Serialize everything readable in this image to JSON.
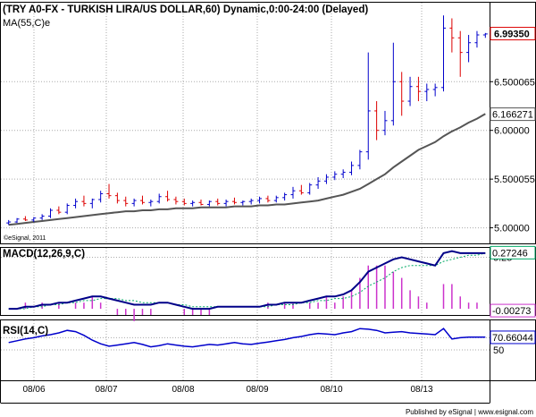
{
  "title": "(TRY A0-FX - TURKISH LIRA/US DOLLAR,60) Dynamic,0:00-24:00 (Delayed)",
  "footer": "Published by eSignal | www.esignal.com",
  "chart_data": [
    {
      "type": "candlestick",
      "title": "(TRY A0-FX - TURKISH LIRA/US DOLLAR,60) Dynamic,0:00-24:00 (Delayed)",
      "overlay_label": "MA(55,C)e",
      "copyright": "©eSignal, 2011",
      "y_ticks": [
        "6.500065",
        "6.00000",
        "5.500055",
        "5.00000"
      ],
      "y_tick_values": [
        6.5,
        6.0,
        5.5,
        5.0
      ],
      "ylim": [
        4.84,
        7.32
      ],
      "last_price": "6.99350",
      "ma_value": "6.166271",
      "x_ticks": [
        "08/06",
        "08/07",
        "08/08",
        "08/09",
        "08/10",
        "08/13"
      ],
      "x_tick_positions": [
        38,
        119,
        205,
        288,
        371,
        472
      ],
      "candles": [
        {
          "o": 5.05,
          "h": 5.08,
          "l": 5.03,
          "c": 5.06
        },
        {
          "o": 5.06,
          "h": 5.1,
          "l": 5.05,
          "c": 5.09
        },
        {
          "o": 5.09,
          "h": 5.12,
          "l": 5.07,
          "c": 5.08
        },
        {
          "o": 5.08,
          "h": 5.11,
          "l": 5.06,
          "c": 5.1
        },
        {
          "o": 5.1,
          "h": 5.14,
          "l": 5.08,
          "c": 5.12
        },
        {
          "o": 5.12,
          "h": 5.2,
          "l": 5.1,
          "c": 5.18
        },
        {
          "o": 5.18,
          "h": 5.22,
          "l": 5.14,
          "c": 5.16
        },
        {
          "o": 5.16,
          "h": 5.25,
          "l": 5.14,
          "c": 5.23
        },
        {
          "o": 5.23,
          "h": 5.3,
          "l": 5.2,
          "c": 5.27
        },
        {
          "o": 5.27,
          "h": 5.33,
          "l": 5.22,
          "c": 5.25
        },
        {
          "o": 5.25,
          "h": 5.3,
          "l": 5.2,
          "c": 5.29
        },
        {
          "o": 5.29,
          "h": 5.38,
          "l": 5.26,
          "c": 5.35
        },
        {
          "o": 5.35,
          "h": 5.45,
          "l": 5.3,
          "c": 5.33
        },
        {
          "o": 5.33,
          "h": 5.36,
          "l": 5.25,
          "c": 5.28
        },
        {
          "o": 5.28,
          "h": 5.32,
          "l": 5.22,
          "c": 5.25
        },
        {
          "o": 5.25,
          "h": 5.3,
          "l": 5.22,
          "c": 5.28
        },
        {
          "o": 5.28,
          "h": 5.33,
          "l": 5.24,
          "c": 5.26
        },
        {
          "o": 5.26,
          "h": 5.29,
          "l": 5.22,
          "c": 5.27
        },
        {
          "o": 5.27,
          "h": 5.35,
          "l": 5.25,
          "c": 5.32
        },
        {
          "o": 5.32,
          "h": 5.38,
          "l": 5.27,
          "c": 5.29
        },
        {
          "o": 5.29,
          "h": 5.32,
          "l": 5.24,
          "c": 5.27
        },
        {
          "o": 5.27,
          "h": 5.3,
          "l": 5.23,
          "c": 5.25
        },
        {
          "o": 5.25,
          "h": 5.28,
          "l": 5.22,
          "c": 5.26
        },
        {
          "o": 5.26,
          "h": 5.29,
          "l": 5.23,
          "c": 5.24
        },
        {
          "o": 5.24,
          "h": 5.28,
          "l": 5.22,
          "c": 5.27
        },
        {
          "o": 5.27,
          "h": 5.3,
          "l": 5.23,
          "c": 5.25
        },
        {
          "o": 5.25,
          "h": 5.29,
          "l": 5.22,
          "c": 5.27
        },
        {
          "o": 5.27,
          "h": 5.31,
          "l": 5.24,
          "c": 5.26
        },
        {
          "o": 5.26,
          "h": 5.28,
          "l": 5.23,
          "c": 5.27
        },
        {
          "o": 5.27,
          "h": 5.3,
          "l": 5.24,
          "c": 5.28
        },
        {
          "o": 5.28,
          "h": 5.32,
          "l": 5.25,
          "c": 5.3
        },
        {
          "o": 5.3,
          "h": 5.33,
          "l": 5.26,
          "c": 5.28
        },
        {
          "o": 5.28,
          "h": 5.33,
          "l": 5.26,
          "c": 5.31
        },
        {
          "o": 5.31,
          "h": 5.36,
          "l": 5.28,
          "c": 5.34
        },
        {
          "o": 5.34,
          "h": 5.42,
          "l": 5.3,
          "c": 5.38
        },
        {
          "o": 5.38,
          "h": 5.44,
          "l": 5.34,
          "c": 5.36
        },
        {
          "o": 5.36,
          "h": 5.46,
          "l": 5.34,
          "c": 5.44
        },
        {
          "o": 5.44,
          "h": 5.52,
          "l": 5.4,
          "c": 5.48
        },
        {
          "o": 5.48,
          "h": 5.55,
          "l": 5.45,
          "c": 5.52
        },
        {
          "o": 5.52,
          "h": 5.58,
          "l": 5.49,
          "c": 5.55
        },
        {
          "o": 5.55,
          "h": 5.6,
          "l": 5.51,
          "c": 5.57
        },
        {
          "o": 5.57,
          "h": 5.68,
          "l": 5.54,
          "c": 5.64
        },
        {
          "o": 5.64,
          "h": 5.8,
          "l": 5.6,
          "c": 5.78
        },
        {
          "o": 5.78,
          "h": 6.8,
          "l": 5.7,
          "c": 6.2
        },
        {
          "o": 6.2,
          "h": 6.3,
          "l": 5.9,
          "c": 6.0
        },
        {
          "o": 6.0,
          "h": 6.2,
          "l": 5.95,
          "c": 6.1
        },
        {
          "o": 6.1,
          "h": 6.9,
          "l": 6.05,
          "c": 6.5
        },
        {
          "o": 6.5,
          "h": 6.6,
          "l": 6.15,
          "c": 6.3
        },
        {
          "o": 6.3,
          "h": 6.55,
          "l": 6.25,
          "c": 6.45
        },
        {
          "o": 6.45,
          "h": 6.55,
          "l": 6.3,
          "c": 6.4
        },
        {
          "o": 6.4,
          "h": 6.48,
          "l": 6.3,
          "c": 6.42
        },
        {
          "o": 6.42,
          "h": 6.48,
          "l": 6.35,
          "c": 6.44
        },
        {
          "o": 6.44,
          "h": 7.18,
          "l": 6.4,
          "c": 7.05
        },
        {
          "o": 7.05,
          "h": 7.15,
          "l": 6.8,
          "c": 6.95
        },
        {
          "o": 6.95,
          "h": 7.02,
          "l": 6.55,
          "c": 6.8
        },
        {
          "o": 6.8,
          "h": 6.98,
          "l": 6.7,
          "c": 6.9
        },
        {
          "o": 6.9,
          "h": 7.02,
          "l": 6.85,
          "c": 6.98
        },
        {
          "o": 6.98,
          "h": 7.0,
          "l": 6.95,
          "c": 6.99
        }
      ],
      "ma": [
        5.03,
        5.04,
        5.05,
        5.06,
        5.07,
        5.08,
        5.09,
        5.1,
        5.11,
        5.12,
        5.13,
        5.14,
        5.15,
        5.16,
        5.17,
        5.17,
        5.18,
        5.18,
        5.19,
        5.19,
        5.2,
        5.2,
        5.2,
        5.21,
        5.21,
        5.21,
        5.21,
        5.22,
        5.22,
        5.22,
        5.23,
        5.23,
        5.24,
        5.24,
        5.25,
        5.26,
        5.27,
        5.28,
        5.3,
        5.32,
        5.34,
        5.37,
        5.4,
        5.45,
        5.5,
        5.55,
        5.62,
        5.68,
        5.74,
        5.8,
        5.84,
        5.88,
        5.94,
        5.99,
        6.03,
        6.08,
        6.12,
        6.17
      ]
    },
    {
      "type": "line",
      "title": "MACD(12,26,9,C)",
      "y_tick": "0.25",
      "y_tick_value": 0.25,
      "ylim": [
        -0.03,
        0.3
      ],
      "macd_value": "0.27246",
      "hist_value": "-0.00273",
      "series": [
        {
          "values": [
            0.0,
            0.0,
            0.01,
            0.01,
            0.02,
            0.02,
            0.03,
            0.03,
            0.04,
            0.05,
            0.06,
            0.06,
            0.05,
            0.04,
            0.03,
            0.02,
            0.02,
            0.02,
            0.03,
            0.03,
            0.02,
            0.01,
            0.0,
            0.0,
            0.0,
            0.01,
            0.01,
            0.01,
            0.01,
            0.01,
            0.01,
            0.02,
            0.02,
            0.03,
            0.03,
            0.03,
            0.04,
            0.05,
            0.06,
            0.06,
            0.07,
            0.09,
            0.13,
            0.18,
            0.2,
            0.22,
            0.24,
            0.25,
            0.24,
            0.23,
            0.22,
            0.21,
            0.27,
            0.28,
            0.27,
            0.27,
            0.27,
            0.27
          ]
        },
        {
          "values": [
            0.0,
            0.0,
            0.0,
            0.01,
            0.01,
            0.02,
            0.02,
            0.03,
            0.03,
            0.04,
            0.04,
            0.05,
            0.05,
            0.05,
            0.04,
            0.04,
            0.03,
            0.03,
            0.03,
            0.03,
            0.02,
            0.02,
            0.01,
            0.01,
            0.01,
            0.01,
            0.01,
            0.01,
            0.01,
            0.01,
            0.01,
            0.01,
            0.02,
            0.02,
            0.02,
            0.03,
            0.03,
            0.04,
            0.04,
            0.05,
            0.05,
            0.06,
            0.08,
            0.11,
            0.13,
            0.15,
            0.18,
            0.2,
            0.21,
            0.21,
            0.21,
            0.21,
            0.23,
            0.24,
            0.25,
            0.26,
            0.26,
            0.27
          ]
        }
      ]
    },
    {
      "type": "line",
      "title": "RSI(14,C)",
      "y_ticks": [
        "70",
        "50"
      ],
      "y_tick_values": [
        70,
        50
      ],
      "ylim": [
        0,
        100
      ],
      "rsi_value": "70.66044",
      "series": [
        {
          "values": [
            62,
            65,
            68,
            70,
            73,
            75,
            78,
            82,
            80,
            74,
            66,
            60,
            56,
            58,
            60,
            62,
            59,
            55,
            57,
            60,
            58,
            56,
            55,
            57,
            59,
            58,
            60,
            62,
            60,
            59,
            61,
            63,
            65,
            67,
            70,
            72,
            75,
            77,
            76,
            75,
            78,
            80,
            85,
            84,
            82,
            78,
            79,
            80,
            78,
            77,
            76,
            75,
            85,
            68,
            70,
            71,
            71,
            71
          ]
        }
      ]
    }
  ]
}
